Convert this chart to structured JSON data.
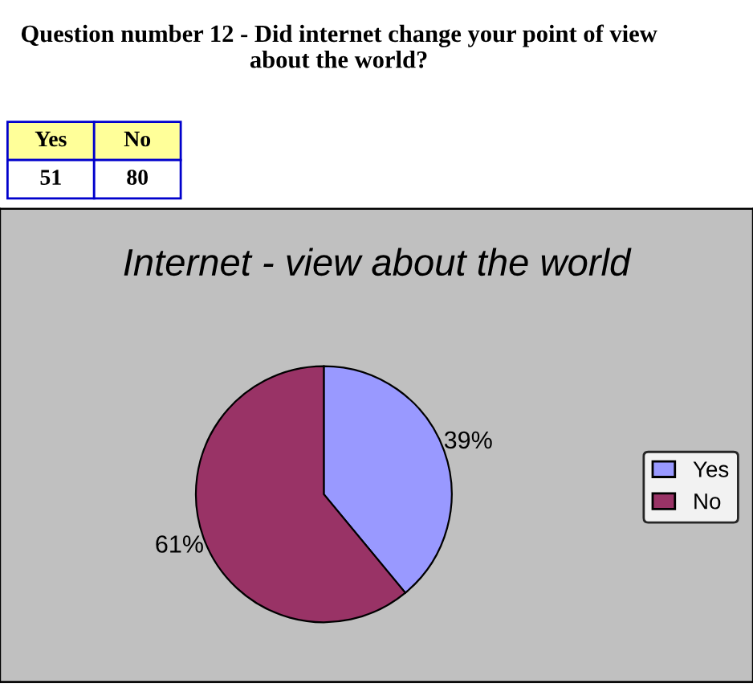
{
  "chart_data": {
    "type": "pie",
    "title": "Question number 12 - Did internet change your point of view about the world?",
    "subtitle": "Internet - view about the world",
    "categories": [
      "Yes",
      "No"
    ],
    "values": [
      39,
      61
    ],
    "colors": [
      "#9999ff",
      "#993366"
    ],
    "value_labels": [
      "39%",
      "61%"
    ],
    "annotations": [
      "51",
      "80"
    ],
    "legend": "right"
  }
}
